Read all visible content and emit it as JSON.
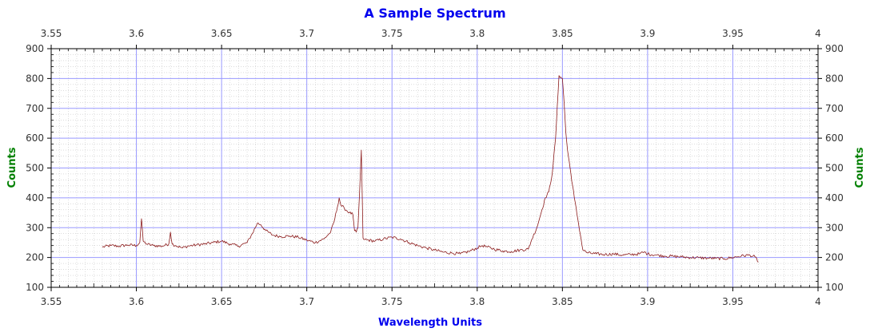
{
  "chart_data": {
    "type": "line",
    "title": "A Sample Spectrum",
    "xlabel": "Wavelength Units",
    "ylabel_left": "Counts",
    "ylabel_right": "Counts",
    "xlim": [
      3.55,
      4.0
    ],
    "ylim": [
      100,
      900
    ],
    "x_ticks": [
      "3.55",
      "3.6",
      "3.65",
      "3.7",
      "3.75",
      "3.8",
      "3.85",
      "3.9",
      "3.95",
      "4"
    ],
    "y_ticks": [
      "100",
      "200",
      "300",
      "400",
      "500",
      "600",
      "700",
      "800",
      "900"
    ],
    "x_tick_values": [
      3.55,
      3.6,
      3.65,
      3.7,
      3.75,
      3.8,
      3.85,
      3.9,
      3.95,
      4.0
    ],
    "y_tick_values": [
      100,
      200,
      300,
      400,
      500,
      600,
      700,
      800,
      900
    ],
    "grid": true,
    "colors": {
      "title": "#0000ee",
      "xlabel": "#0000ee",
      "ylabel": "#008000",
      "series": "#8b1a1a",
      "major_grid": "#9999ff",
      "minor_grid": "#c8c8c8",
      "axis": "#000000"
    },
    "series": [
      {
        "x": [
          3.58,
          3.585,
          3.59,
          3.595,
          3.6,
          3.602,
          3.603,
          3.604,
          3.606,
          3.61,
          3.615,
          3.619,
          3.62,
          3.621,
          3.623,
          3.627,
          3.63,
          3.635,
          3.64,
          3.645,
          3.65,
          3.655,
          3.66,
          3.665,
          3.668,
          3.671,
          3.673,
          3.676,
          3.68,
          3.685,
          3.69,
          3.695,
          3.7,
          3.705,
          3.71,
          3.714,
          3.716,
          3.718,
          3.719,
          3.72,
          3.722,
          3.725,
          3.727,
          3.728,
          3.729,
          3.73,
          3.731,
          3.732,
          3.733,
          3.734,
          3.74,
          3.745,
          3.75,
          3.755,
          3.76,
          3.765,
          3.77,
          3.775,
          3.78,
          3.785,
          3.79,
          3.795,
          3.8,
          3.803,
          3.806,
          3.81,
          3.815,
          3.82,
          3.825,
          3.83,
          3.832,
          3.835,
          3.838,
          3.84,
          3.842,
          3.844,
          3.846,
          3.848,
          3.849,
          3.85,
          3.851,
          3.852,
          3.853,
          3.855,
          3.857,
          3.859,
          3.861,
          3.862,
          3.865,
          3.87,
          3.875,
          3.88,
          3.885,
          3.89,
          3.895,
          3.898,
          3.9,
          3.905,
          3.91,
          3.915,
          3.92,
          3.925,
          3.93,
          3.935,
          3.94,
          3.945,
          3.95,
          3.955,
          3.96,
          3.963,
          3.965
        ],
        "values": [
          235,
          240,
          238,
          242,
          240,
          250,
          330,
          255,
          245,
          240,
          238,
          245,
          285,
          245,
          240,
          232,
          238,
          242,
          245,
          250,
          255,
          245,
          238,
          250,
          280,
          315,
          310,
          290,
          275,
          270,
          272,
          268,
          258,
          250,
          262,
          285,
          320,
          370,
          400,
          375,
          365,
          350,
          345,
          290,
          285,
          300,
          420,
          560,
          265,
          260,
          255,
          262,
          268,
          262,
          250,
          240,
          232,
          225,
          218,
          215,
          212,
          220,
          232,
          240,
          235,
          228,
          222,
          220,
          225,
          228,
          260,
          300,
          360,
          400,
          420,
          480,
          600,
          810,
          805,
          800,
          720,
          620,
          560,
          480,
          400,
          330,
          260,
          225,
          215,
          212,
          210,
          212,
          208,
          210,
          212,
          218,
          212,
          208,
          205,
          204,
          202,
          200,
          199,
          198,
          197,
          196,
          200,
          205,
          208,
          202,
          185
        ]
      }
    ]
  }
}
